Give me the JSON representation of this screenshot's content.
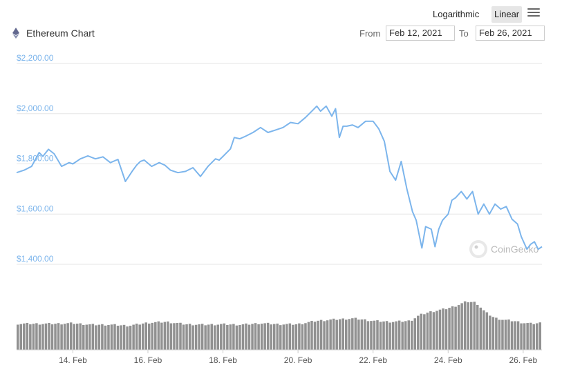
{
  "header": {
    "title": "Ethereum Chart",
    "scale_options": [
      "Logarithmic",
      "Linear"
    ],
    "selected_scale": "Linear",
    "from_label": "From",
    "from_value": "Feb 12, 2021",
    "to_label": "To",
    "to_value": "Feb 26, 2021"
  },
  "watermark": "CoinGecko",
  "colors": {
    "line": "#7cb5ec",
    "volume": "#919191",
    "grid": "#e6e6e6",
    "axis_label": "#7cb5ec"
  },
  "chart_data": {
    "type": "line",
    "title": "Ethereum Chart",
    "x_range": [
      "Feb 12, 2021",
      "Feb 26, 2021"
    ],
    "xticks": [
      "14. Feb",
      "16. Feb",
      "18. Feb",
      "20. Feb",
      "22. Feb",
      "24. Feb",
      "26. Feb"
    ],
    "yticks": [
      "$1,400.00",
      "$1,600.00",
      "$1,800.00",
      "$2,000.00",
      "$2,200.00"
    ],
    "ylim": [
      1400,
      2200
    ],
    "grid": true,
    "price_series": {
      "x": [
        12.5,
        12.7,
        12.9,
        13.1,
        13.2,
        13.35,
        13.5,
        13.7,
        13.9,
        14.0,
        14.2,
        14.4,
        14.6,
        14.8,
        15.0,
        15.2,
        15.4,
        15.6,
        15.7,
        15.8,
        15.9,
        16.1,
        16.3,
        16.45,
        16.6,
        16.8,
        17.0,
        17.2,
        17.4,
        17.6,
        17.8,
        17.9,
        18.0,
        18.2,
        18.3,
        18.45,
        18.6,
        18.8,
        19.0,
        19.2,
        19.4,
        19.6,
        19.8,
        20.0,
        20.2,
        20.4,
        20.5,
        20.6,
        20.75,
        20.9,
        21.0,
        21.1,
        21.2,
        21.3,
        21.45,
        21.6,
        21.8,
        22.0,
        22.15,
        22.3,
        22.45,
        22.6,
        22.75,
        22.9,
        23.05,
        23.15,
        23.3,
        23.4,
        23.55,
        23.65,
        23.75,
        23.85,
        24.0,
        24.1,
        24.2,
        24.35,
        24.5,
        24.65,
        24.8,
        24.95,
        25.1,
        25.25,
        25.4,
        25.55,
        25.7,
        25.85,
        25.95,
        26.1,
        26.2,
        26.3,
        26.4,
        26.5
      ],
      "y": [
        1765,
        1775,
        1790,
        1845,
        1830,
        1858,
        1840,
        1790,
        1805,
        1800,
        1820,
        1832,
        1820,
        1828,
        1805,
        1818,
        1730,
        1775,
        1795,
        1810,
        1815,
        1790,
        1805,
        1795,
        1775,
        1765,
        1770,
        1785,
        1750,
        1790,
        1820,
        1815,
        1830,
        1860,
        1905,
        1900,
        1910,
        1925,
        1945,
        1925,
        1935,
        1945,
        1965,
        1960,
        1985,
        2015,
        2030,
        2010,
        2030,
        1990,
        2020,
        1905,
        1950,
        1950,
        1955,
        1945,
        1970,
        1970,
        1940,
        1890,
        1770,
        1735,
        1810,
        1700,
        1610,
        1575,
        1465,
        1550,
        1540,
        1470,
        1540,
        1575,
        1600,
        1655,
        1665,
        1690,
        1660,
        1690,
        1600,
        1640,
        1600,
        1640,
        1620,
        1630,
        1580,
        1560,
        1510,
        1460,
        1480,
        1490,
        1460,
        1470
      ]
    },
    "volume_series": {
      "note_units": "relative",
      "x": [
        12.5,
        13.0,
        13.5,
        14.0,
        14.5,
        15.0,
        15.5,
        16.0,
        16.5,
        17.0,
        17.5,
        18.0,
        18.5,
        19.0,
        19.5,
        20.0,
        20.5,
        21.0,
        21.5,
        22.0,
        22.5,
        23.0,
        23.25,
        23.5,
        23.75,
        24.0,
        24.25,
        24.5,
        24.75,
        25.0,
        25.25,
        25.5,
        25.75,
        26.0,
        26.25,
        26.5
      ],
      "y": [
        0.54,
        0.54,
        0.54,
        0.55,
        0.52,
        0.52,
        0.5,
        0.56,
        0.58,
        0.53,
        0.52,
        0.53,
        0.52,
        0.55,
        0.53,
        0.53,
        0.6,
        0.63,
        0.65,
        0.6,
        0.58,
        0.6,
        0.72,
        0.78,
        0.82,
        0.86,
        0.92,
        1.0,
        0.98,
        0.78,
        0.66,
        0.62,
        0.6,
        0.56,
        0.54,
        0.56
      ]
    }
  }
}
